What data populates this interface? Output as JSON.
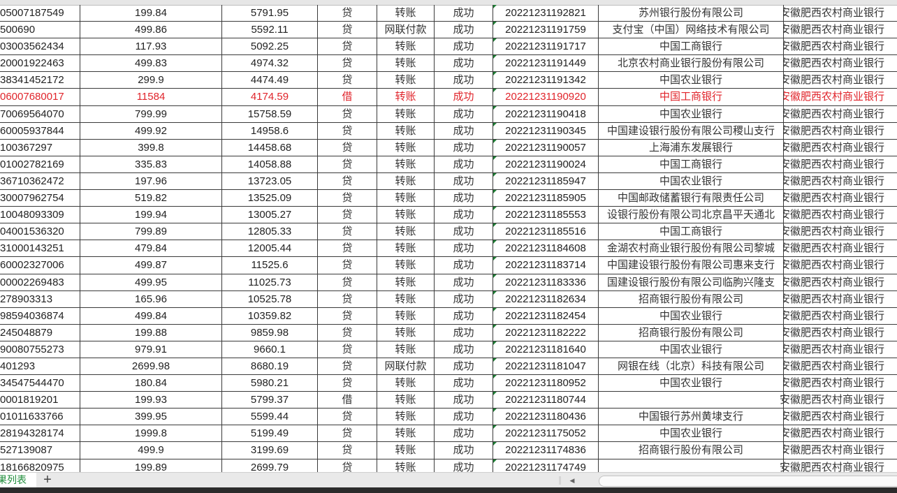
{
  "sheet": {
    "tab_label": "果列表",
    "add_sheet_icon": "plus-icon",
    "highlight_color": "#e0242b",
    "rows": [
      {
        "account": "05007187549",
        "amount": "199.84",
        "balance": "5791.95",
        "dir": "贷",
        "type": "转账",
        "status": "成功",
        "serial": "20221231192821",
        "counterparty": "苏州银行股份有限公司",
        "bank": "安徽肥西农村商业银行"
      },
      {
        "account": "500690",
        "amount": "499.86",
        "balance": "5592.11",
        "dir": "贷",
        "type": "网联付款",
        "status": "成功",
        "serial": "20221231191759",
        "counterparty": "支付宝（中国）网络技术有限公司",
        "bank": "安徽肥西农村商业银行"
      },
      {
        "account": "03003562434",
        "amount": "117.93",
        "balance": "5092.25",
        "dir": "贷",
        "type": "转账",
        "status": "成功",
        "serial": "20221231191717",
        "counterparty": "中国工商银行",
        "bank": "安徽肥西农村商业银行"
      },
      {
        "account": "20001922463",
        "amount": "499.83",
        "balance": "4974.32",
        "dir": "贷",
        "type": "转账",
        "status": "成功",
        "serial": "20221231191449",
        "counterparty": "北京农村商业银行股份有限公司",
        "bank": "安徽肥西农村商业银行"
      },
      {
        "account": "38341452172",
        "amount": "299.9",
        "balance": "4474.49",
        "dir": "贷",
        "type": "转账",
        "status": "成功",
        "serial": "20221231191342",
        "counterparty": "中国农业银行",
        "bank": "安徽肥西农村商业银行"
      },
      {
        "account": "06007680017",
        "amount": "11584",
        "balance": "4174.59",
        "dir": "借",
        "type": "转账",
        "status": "成功",
        "serial": "20221231190920",
        "counterparty": "中国工商银行",
        "bank": "安徽肥西农村商业银行",
        "highlight": true
      },
      {
        "account": "70069564070",
        "amount": "799.99",
        "balance": "15758.59",
        "dir": "贷",
        "type": "转账",
        "status": "成功",
        "serial": "20221231190418",
        "counterparty": "中国农业银行",
        "bank": "安徽肥西农村商业银行"
      },
      {
        "account": "60005937844",
        "amount": "499.92",
        "balance": "14958.6",
        "dir": "贷",
        "type": "转账",
        "status": "成功",
        "serial": "20221231190345",
        "counterparty": "中国建设银行股份有限公司稷山支行",
        "bank": "安徽肥西农村商业银行"
      },
      {
        "account": "100367297",
        "amount": "399.8",
        "balance": "14458.68",
        "dir": "贷",
        "type": "转账",
        "status": "成功",
        "serial": "20221231190057",
        "counterparty": "上海浦东发展银行",
        "bank": "安徽肥西农村商业银行"
      },
      {
        "account": "01002782169",
        "amount": "335.83",
        "balance": "14058.88",
        "dir": "贷",
        "type": "转账",
        "status": "成功",
        "serial": "20221231190024",
        "counterparty": "中国工商银行",
        "bank": "安徽肥西农村商业银行"
      },
      {
        "account": "36710362472",
        "amount": "197.96",
        "balance": "13723.05",
        "dir": "贷",
        "type": "转账",
        "status": "成功",
        "serial": "20221231185947",
        "counterparty": "中国农业银行",
        "bank": "安徽肥西农村商业银行"
      },
      {
        "account": "30007962754",
        "amount": "519.82",
        "balance": "13525.09",
        "dir": "贷",
        "type": "转账",
        "status": "成功",
        "serial": "20221231185905",
        "counterparty": "中国邮政储蓄银行有限责任公司",
        "bank": "安徽肥西农村商业银行"
      },
      {
        "account": "10048093309",
        "amount": "199.94",
        "balance": "13005.27",
        "dir": "贷",
        "type": "转账",
        "status": "成功",
        "serial": "20221231185553",
        "counterparty": "设银行股份有限公司北京昌平天通北",
        "bank": "安徽肥西农村商业银行"
      },
      {
        "account": "04001536320",
        "amount": "799.89",
        "balance": "12805.33",
        "dir": "贷",
        "type": "转账",
        "status": "成功",
        "serial": "20221231185516",
        "counterparty": "中国工商银行",
        "bank": "安徽肥西农村商业银行"
      },
      {
        "account": "31000143251",
        "amount": "479.84",
        "balance": "12005.44",
        "dir": "贷",
        "type": "转账",
        "status": "成功",
        "serial": "20221231184608",
        "counterparty": "金湖农村商业银行股份有限公司黎城",
        "bank": "安徽肥西农村商业银行"
      },
      {
        "account": "60002327006",
        "amount": "499.87",
        "balance": "11525.6",
        "dir": "贷",
        "type": "转账",
        "status": "成功",
        "serial": "20221231183714",
        "counterparty": "中国建设银行股份有限公司惠来支行",
        "bank": "安徽肥西农村商业银行"
      },
      {
        "account": "00002269483",
        "amount": "499.95",
        "balance": "11025.73",
        "dir": "贷",
        "type": "转账",
        "status": "成功",
        "serial": "20221231183336",
        "counterparty": "国建设银行股份有限公司临朐兴隆支",
        "bank": "安徽肥西农村商业银行"
      },
      {
        "account": "278903313",
        "amount": "165.96",
        "balance": "10525.78",
        "dir": "贷",
        "type": "转账",
        "status": "成功",
        "serial": "20221231182634",
        "counterparty": "招商银行股份有限公司",
        "bank": "安徽肥西农村商业银行"
      },
      {
        "account": "98594036874",
        "amount": "499.84",
        "balance": "10359.82",
        "dir": "贷",
        "type": "转账",
        "status": "成功",
        "serial": "20221231182454",
        "counterparty": "中国农业银行",
        "bank": "安徽肥西农村商业银行"
      },
      {
        "account": "245048879",
        "amount": "199.88",
        "balance": "9859.98",
        "dir": "贷",
        "type": "转账",
        "status": "成功",
        "serial": "20221231182222",
        "counterparty": "招商银行股份有限公司",
        "bank": "安徽肥西农村商业银行"
      },
      {
        "account": "90080755273",
        "amount": "979.91",
        "balance": "9660.1",
        "dir": "贷",
        "type": "转账",
        "status": "成功",
        "serial": "20221231181640",
        "counterparty": "中国农业银行",
        "bank": "安徽肥西农村商业银行"
      },
      {
        "account": "401293",
        "amount": "2699.98",
        "balance": "8680.19",
        "dir": "贷",
        "type": "网联付款",
        "status": "成功",
        "serial": "20221231181047",
        "counterparty": "网银在线（北京）科技有限公司",
        "bank": "安徽肥西农村商业银行"
      },
      {
        "account": "34547544470",
        "amount": "180.84",
        "balance": "5980.21",
        "dir": "贷",
        "type": "转账",
        "status": "成功",
        "serial": "20221231180952",
        "counterparty": "中国农业银行",
        "bank": "安徽肥西农村商业银行"
      },
      {
        "account": "0001819201",
        "amount": "199.93",
        "balance": "5799.37",
        "dir": "借",
        "type": "转账",
        "status": "成功",
        "serial": "20221231180744",
        "counterparty": "",
        "bank": "安徽肥西农村商业银行"
      },
      {
        "account": "01011633766",
        "amount": "399.95",
        "balance": "5599.44",
        "dir": "贷",
        "type": "转账",
        "status": "成功",
        "serial": "20221231180436",
        "counterparty": "中国银行苏州黄埭支行",
        "bank": "安徽肥西农村商业银行"
      },
      {
        "account": "28194328174",
        "amount": "1999.8",
        "balance": "5199.49",
        "dir": "贷",
        "type": "转账",
        "status": "成功",
        "serial": "20221231175052",
        "counterparty": "中国农业银行",
        "bank": "安徽肥西农村商业银行"
      },
      {
        "account": "527139087",
        "amount": "499.9",
        "balance": "3199.69",
        "dir": "贷",
        "type": "转账",
        "status": "成功",
        "serial": "20221231174836",
        "counterparty": "招商银行股份有限公司",
        "bank": "安徽肥西农村商业银行"
      },
      {
        "account": "18166820975",
        "amount": "199.89",
        "balance": "2699.79",
        "dir": "贷",
        "type": "转账",
        "status": "成功",
        "serial": "20221231174749",
        "counterparty": "",
        "bank": "安徽肥西农村商业银行"
      }
    ]
  }
}
